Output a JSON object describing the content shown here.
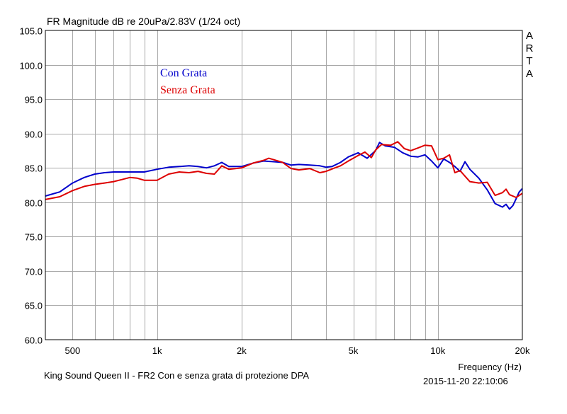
{
  "header": {
    "title": "FR Magnitude dB re 20uPa/2.83V (1/24 oct)",
    "watermark_letters": [
      "A",
      "R",
      "T",
      "A"
    ]
  },
  "footer": {
    "caption": "King Sound Queen II - FR2 Con e senza grata di protezione    DPA",
    "timestamp": "2015-11-20  22:10:06"
  },
  "chart_data": {
    "type": "line",
    "title": "FR Magnitude dB re 20uPa/2.83V (1/24 oct)",
    "xlabel": "Frequency (Hz)",
    "ylabel": "",
    "xscale": "log",
    "xlim": [
      400,
      20000
    ],
    "ylim": [
      60,
      105
    ],
    "grid": true,
    "legend_position": "top-left",
    "x_ticks": [
      {
        "value": 500,
        "label": "500"
      },
      {
        "value": 1000,
        "label": "1k"
      },
      {
        "value": 2000,
        "label": "2k"
      },
      {
        "value": 5000,
        "label": "5k"
      },
      {
        "value": 10000,
        "label": "10k"
      },
      {
        "value": 20000,
        "label": "20k"
      }
    ],
    "y_ticks": [
      {
        "value": 60,
        "label": "60.0"
      },
      {
        "value": 65,
        "label": "65.0"
      },
      {
        "value": 70,
        "label": "70.0"
      },
      {
        "value": 75,
        "label": "75.0"
      },
      {
        "value": 80,
        "label": "80.0"
      },
      {
        "value": 85,
        "label": "85.0"
      },
      {
        "value": 90,
        "label": "90.0"
      },
      {
        "value": 95,
        "label": "95.0"
      },
      {
        "value": 100,
        "label": "100.0"
      },
      {
        "value": 105,
        "label": "105.0"
      }
    ],
    "series": [
      {
        "name": "Con Grata",
        "color": "#0000cc",
        "points": [
          [
            400,
            80.9
          ],
          [
            450,
            81.5
          ],
          [
            500,
            82.8
          ],
          [
            550,
            83.6
          ],
          [
            600,
            84.1
          ],
          [
            650,
            84.3
          ],
          [
            700,
            84.4
          ],
          [
            800,
            84.4
          ],
          [
            900,
            84.4
          ],
          [
            1000,
            84.8
          ],
          [
            1100,
            85.1
          ],
          [
            1200,
            85.2
          ],
          [
            1300,
            85.3
          ],
          [
            1400,
            85.2
          ],
          [
            1500,
            85.0
          ],
          [
            1600,
            85.3
          ],
          [
            1700,
            85.8
          ],
          [
            1800,
            85.2
          ],
          [
            2000,
            85.2
          ],
          [
            2200,
            85.7
          ],
          [
            2400,
            86.0
          ],
          [
            2600,
            85.9
          ],
          [
            2800,
            85.8
          ],
          [
            3000,
            85.4
          ],
          [
            3200,
            85.5
          ],
          [
            3500,
            85.4
          ],
          [
            3800,
            85.3
          ],
          [
            4000,
            85.1
          ],
          [
            4200,
            85.2
          ],
          [
            4500,
            85.8
          ],
          [
            4800,
            86.6
          ],
          [
            5200,
            87.2
          ],
          [
            5600,
            86.4
          ],
          [
            6000,
            87.5
          ],
          [
            6200,
            88.7
          ],
          [
            6500,
            88.2
          ],
          [
            7000,
            88.0
          ],
          [
            7500,
            87.2
          ],
          [
            8000,
            86.7
          ],
          [
            8500,
            86.6
          ],
          [
            9000,
            86.9
          ],
          [
            9500,
            86.0
          ],
          [
            10000,
            85.0
          ],
          [
            10500,
            86.3
          ],
          [
            11000,
            85.8
          ],
          [
            11500,
            85.2
          ],
          [
            12000,
            84.5
          ],
          [
            12500,
            85.9
          ],
          [
            13000,
            84.8
          ],
          [
            14000,
            83.5
          ],
          [
            15000,
            81.8
          ],
          [
            16000,
            79.8
          ],
          [
            17000,
            79.3
          ],
          [
            17500,
            79.7
          ],
          [
            18000,
            79.0
          ],
          [
            18500,
            79.5
          ],
          [
            19000,
            80.5
          ],
          [
            19500,
            81.5
          ],
          [
            20000,
            82.0
          ]
        ]
      },
      {
        "name": "Senza Grata",
        "color": "#dd0000",
        "points": [
          [
            400,
            80.4
          ],
          [
            450,
            80.8
          ],
          [
            500,
            81.7
          ],
          [
            550,
            82.3
          ],
          [
            600,
            82.6
          ],
          [
            650,
            82.8
          ],
          [
            700,
            83.0
          ],
          [
            750,
            83.3
          ],
          [
            800,
            83.6
          ],
          [
            850,
            83.5
          ],
          [
            900,
            83.2
          ],
          [
            1000,
            83.2
          ],
          [
            1100,
            84.1
          ],
          [
            1200,
            84.4
          ],
          [
            1300,
            84.3
          ],
          [
            1400,
            84.5
          ],
          [
            1500,
            84.2
          ],
          [
            1600,
            84.1
          ],
          [
            1700,
            85.3
          ],
          [
            1800,
            84.8
          ],
          [
            2000,
            85.0
          ],
          [
            2200,
            85.7
          ],
          [
            2400,
            86.1
          ],
          [
            2500,
            86.4
          ],
          [
            2600,
            86.2
          ],
          [
            2800,
            85.8
          ],
          [
            3000,
            84.9
          ],
          [
            3200,
            84.7
          ],
          [
            3500,
            84.9
          ],
          [
            3800,
            84.3
          ],
          [
            4000,
            84.5
          ],
          [
            4300,
            85.0
          ],
          [
            4500,
            85.3
          ],
          [
            4800,
            86.0
          ],
          [
            5200,
            86.8
          ],
          [
            5500,
            87.3
          ],
          [
            5800,
            86.5
          ],
          [
            6000,
            87.6
          ],
          [
            6300,
            88.4
          ],
          [
            6800,
            88.3
          ],
          [
            7200,
            88.8
          ],
          [
            7600,
            87.8
          ],
          [
            8000,
            87.5
          ],
          [
            8500,
            87.9
          ],
          [
            9000,
            88.3
          ],
          [
            9500,
            88.2
          ],
          [
            10000,
            86.2
          ],
          [
            10500,
            86.4
          ],
          [
            11000,
            86.9
          ],
          [
            11500,
            84.3
          ],
          [
            12000,
            84.6
          ],
          [
            13000,
            83.0
          ],
          [
            14000,
            82.8
          ],
          [
            15000,
            82.9
          ],
          [
            16000,
            81.0
          ],
          [
            17000,
            81.4
          ],
          [
            17500,
            81.9
          ],
          [
            18000,
            81.1
          ],
          [
            19000,
            80.7
          ],
          [
            20000,
            81.3
          ]
        ]
      }
    ]
  }
}
